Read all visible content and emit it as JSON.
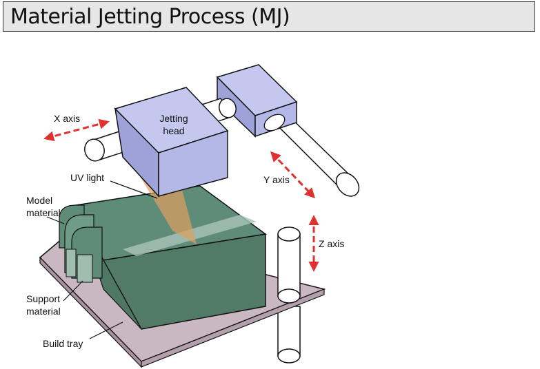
{
  "title": "Material Jetting Process (MJ)",
  "labels": {
    "x_axis": "X axis",
    "y_axis": "Y axis",
    "z_axis": "Z axis",
    "jetting_head_line1": "Jetting",
    "jetting_head_line2": "head",
    "uv_light": "UV light",
    "model_material_line1": "Model",
    "model_material_line2": "material",
    "support_material_line1": "Support",
    "support_material_line2": "material",
    "build_tray": "Build tray"
  },
  "colors": {
    "head_fill": "#b4b8e6",
    "model_fill": "#5e8c78",
    "tray_fill": "#c9b7c2",
    "uv_beam": "#e0a060",
    "axis_arrow": "#e03030",
    "rod_fill": "#ffffff"
  }
}
